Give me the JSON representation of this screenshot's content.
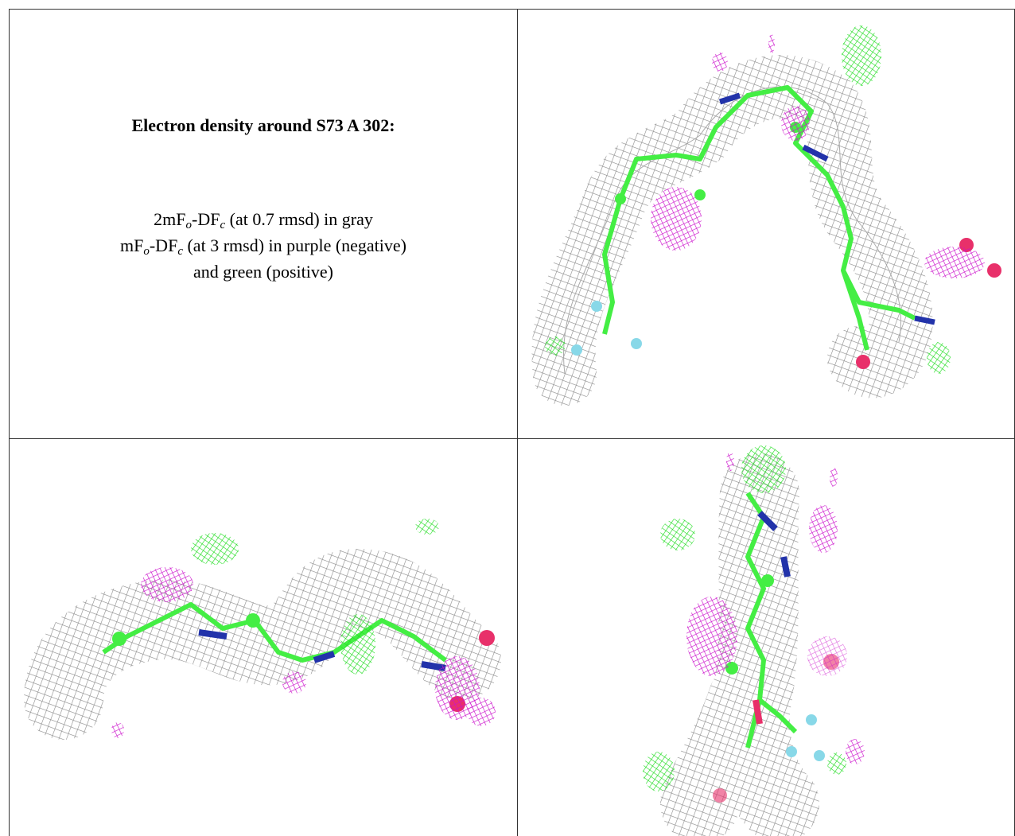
{
  "caption": {
    "title": "Electron density around S73 A 302:",
    "lines": [
      [
        "2mF",
        "o",
        "-DF",
        "c",
        " (at 0.7 rmsd) in gray"
      ],
      [
        "mF",
        "o",
        "-DF",
        "c",
        " (at 3 rmsd) in purple (negative)"
      ],
      [
        "and green (positive)"
      ]
    ]
  }
}
